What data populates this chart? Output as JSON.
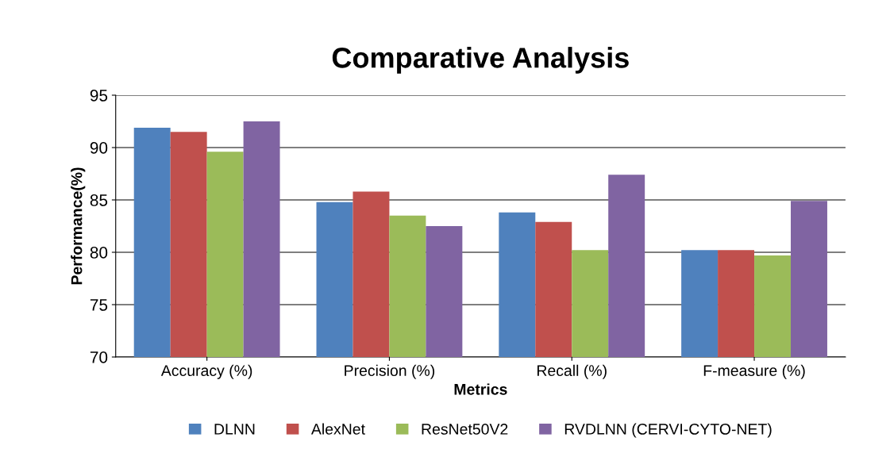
{
  "chart_data": {
    "type": "bar",
    "title": "Comparative Analysis",
    "xlabel": "Metrics",
    "ylabel": "Performance(%)",
    "categories": [
      "Accuracy (%)",
      "Precision (%)",
      "Recall (%)",
      "F-measure (%)"
    ],
    "series": [
      {
        "name": "DLNN",
        "color": "#4f81bd",
        "values": [
          91.9,
          84.8,
          83.8,
          80.2
        ]
      },
      {
        "name": "AlexNet",
        "color": "#c0504d",
        "values": [
          91.5,
          85.8,
          82.9,
          80.2
        ]
      },
      {
        "name": "ResNet50V2",
        "color": "#9bbb59",
        "values": [
          89.6,
          83.5,
          80.2,
          79.7
        ]
      },
      {
        "name": "RVDLNN (CERVI-CYTO-NET)",
        "color": "#8064a2",
        "values": [
          92.5,
          82.5,
          87.4,
          84.9
        ]
      }
    ],
    "ylim": [
      70,
      95
    ],
    "yticks": [
      70,
      75,
      80,
      85,
      90,
      95
    ],
    "grid": "y",
    "legend": "bottom"
  }
}
